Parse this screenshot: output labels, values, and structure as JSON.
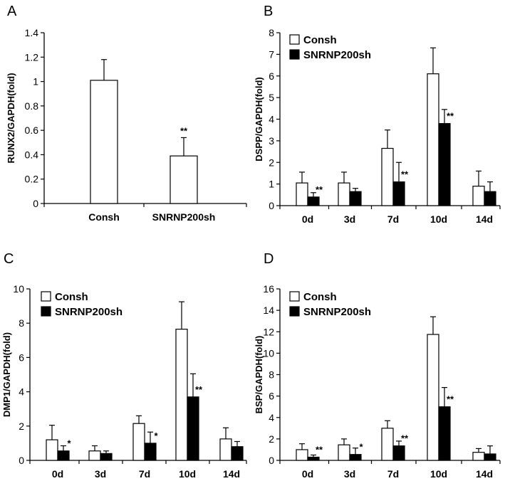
{
  "colors": {
    "consh": "#ffffff",
    "snrnp": "#000000",
    "stroke": "#000000"
  },
  "chart_data": [
    {
      "panel": "A",
      "type": "bar",
      "ylabel": "RUNX2/GAPDH(fold)",
      "xlabel": "",
      "ylim": [
        0,
        1.4
      ],
      "ticks": [
        "0",
        "0.2",
        "0.4",
        "0.6",
        "0.8",
        "1",
        "1.2",
        "1.4"
      ],
      "categories": [
        "Consh",
        "SNRNP200sh"
      ],
      "values": [
        1.01,
        0.39
      ],
      "errors": [
        0.17,
        0.15
      ],
      "fills": [
        "consh",
        "consh"
      ],
      "significance": [
        "",
        "**"
      ],
      "legend": []
    },
    {
      "panel": "B",
      "type": "bar",
      "ylabel": "DSPP/GAPDH(fold)",
      "xlabel": "",
      "ylim": [
        0,
        8
      ],
      "ticks": [
        "0",
        "1",
        "2",
        "3",
        "4",
        "5",
        "6",
        "7",
        "8"
      ],
      "categories": [
        "0d",
        "3d",
        "7d",
        "10d",
        "14d"
      ],
      "series": [
        {
          "name": "Consh",
          "color": "consh",
          "values": [
            1.05,
            1.05,
            2.65,
            6.1,
            0.9
          ],
          "errors": [
            0.5,
            0.5,
            0.85,
            1.2,
            0.7
          ],
          "significance": [
            "",
            "",
            "",
            "",
            ""
          ]
        },
        {
          "name": "SNRNP200sh",
          "color": "snrnp",
          "values": [
            0.4,
            0.65,
            1.1,
            3.8,
            0.65
          ],
          "errors": [
            0.2,
            0.15,
            0.9,
            0.65,
            0.45
          ],
          "significance": [
            "**",
            "",
            "**",
            "**",
            ""
          ]
        }
      ],
      "legend": [
        "Consh",
        "SNRNP200sh"
      ]
    },
    {
      "panel": "C",
      "type": "bar",
      "ylabel": "DMP1/GAPDH(fold)",
      "xlabel": "",
      "ylim": [
        0,
        10
      ],
      "ticks": [
        "0",
        "2",
        "4",
        "6",
        "8",
        "10"
      ],
      "categories": [
        "0d",
        "3d",
        "7d",
        "10d",
        "14d"
      ],
      "series": [
        {
          "name": "Consh",
          "color": "consh",
          "values": [
            1.2,
            0.55,
            2.15,
            7.65,
            1.25
          ],
          "errors": [
            0.85,
            0.3,
            0.45,
            1.6,
            0.65
          ],
          "significance": [
            "",
            "",
            "",
            "",
            ""
          ]
        },
        {
          "name": "SNRNP200sh",
          "color": "snrnp",
          "values": [
            0.55,
            0.4,
            1.0,
            3.7,
            0.8
          ],
          "errors": [
            0.3,
            0.15,
            0.65,
            1.35,
            0.3
          ],
          "significance": [
            "*",
            "",
            "*",
            "**",
            ""
          ]
        }
      ],
      "legend": [
        "Consh",
        "SNRNP200sh"
      ]
    },
    {
      "panel": "D",
      "type": "bar",
      "ylabel": "BSP/GAPDH(fold)",
      "xlabel": "",
      "ylim": [
        0,
        16
      ],
      "ticks": [
        "0",
        "2",
        "4",
        "6",
        "8",
        "10",
        "12",
        "14",
        "16"
      ],
      "categories": [
        "0d",
        "3d",
        "7d",
        "10d",
        "14d"
      ],
      "series": [
        {
          "name": "Consh",
          "color": "consh",
          "values": [
            1.0,
            1.45,
            3.0,
            11.75,
            0.75
          ],
          "errors": [
            0.55,
            0.55,
            0.7,
            1.65,
            0.35
          ],
          "significance": [
            "",
            "",
            "",
            "",
            ""
          ]
        },
        {
          "name": "SNRNP200sh",
          "color": "snrnp",
          "values": [
            0.3,
            0.55,
            1.35,
            5.0,
            0.6
          ],
          "errors": [
            0.2,
            0.6,
            0.45,
            1.8,
            0.75
          ],
          "significance": [
            "**",
            "*",
            "**",
            "**",
            ""
          ]
        }
      ],
      "legend": [
        "Consh",
        "SNRNP200sh"
      ]
    }
  ]
}
